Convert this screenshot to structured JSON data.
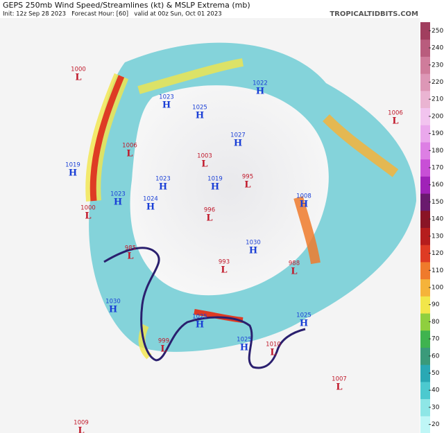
{
  "header": {
    "title": "GEPS 250mb Wind Speed/Streamlines (kt) & MSLP Extrema (mb)",
    "subtitle": "Init: 12z Sep 28 2023   Forecast Hour: [60]   valid at 00z Sun, Oct 01 2023",
    "site": "TROPICALTIDBITS.COM"
  },
  "pressure_centers": [
    {
      "value": "1000",
      "type": "L"
    },
    {
      "value": "1023",
      "type": "H"
    },
    {
      "value": "1025",
      "type": "H"
    },
    {
      "value": "1022",
      "type": "H"
    },
    {
      "value": "1006",
      "type": "L"
    },
    {
      "value": "1019",
      "type": "H"
    },
    {
      "value": "1006",
      "type": "L"
    },
    {
      "value": "1003",
      "type": "L"
    },
    {
      "value": "1027",
      "type": "H"
    },
    {
      "value": "1023",
      "type": "H"
    },
    {
      "value": "1019",
      "type": "H"
    },
    {
      "value": "995",
      "type": "L"
    },
    {
      "value": "1023",
      "type": "H"
    },
    {
      "value": "1024",
      "type": "H"
    },
    {
      "value": "1008",
      "type": "H"
    },
    {
      "value": "1000",
      "type": "L"
    },
    {
      "value": "996",
      "type": "L"
    },
    {
      "value": "1030",
      "type": "H"
    },
    {
      "value": "985",
      "type": "L"
    },
    {
      "value": "988",
      "type": "L"
    },
    {
      "value": "993",
      "type": "L"
    },
    {
      "value": "1030",
      "type": "H"
    },
    {
      "value": "1025",
      "type": "H"
    },
    {
      "value": "1025",
      "type": "H"
    },
    {
      "value": "1025",
      "type": "H"
    },
    {
      "value": "999",
      "type": "L"
    },
    {
      "value": "1010",
      "type": "L"
    },
    {
      "value": "1007",
      "type": "L"
    },
    {
      "value": "1009",
      "type": "L"
    }
  ],
  "colorbar": {
    "ticks": [
      20,
      30,
      40,
      50,
      60,
      70,
      80,
      90,
      100,
      110,
      120,
      130,
      140,
      150,
      160,
      170,
      180,
      190,
      200,
      210,
      220,
      230,
      240,
      250
    ],
    "colors": [
      "#bff6f6",
      "#8ee6e6",
      "#4cc9cf",
      "#2aa8b4",
      "#3a9a7a",
      "#3fb34f",
      "#8fcf3f",
      "#f2e64a",
      "#f5b33a",
      "#ef7a2c",
      "#de3b24",
      "#b51d1d",
      "#8a1426",
      "#6a1a6e",
      "#a022b8",
      "#c84fd6",
      "#dd7fe4",
      "#eaa8ec",
      "#f2c4ef",
      "#eab4d2",
      "#dd97b6",
      "#cf7c9b",
      "#b95c7d",
      "#a13e5f"
    ]
  }
}
